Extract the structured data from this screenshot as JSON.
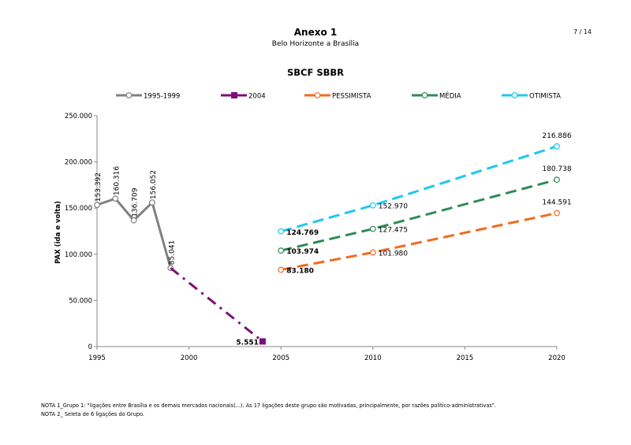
{
  "header": {
    "title": "Anexo 1",
    "subtitle": "Belo Horizonte a Brasília",
    "page": "7 / 14"
  },
  "chart_data": {
    "type": "line",
    "title": "SBCF SBBR",
    "ylabel": "PAX (ida e volta)",
    "xlabel": "",
    "xlim": [
      1995,
      2020
    ],
    "ylim": [
      0,
      250000
    ],
    "x_ticks": [
      1995,
      2000,
      2005,
      2010,
      2015,
      2020
    ],
    "y_ticks": [
      0,
      50000,
      100000,
      150000,
      200000,
      250000
    ],
    "y_tick_labels": [
      "0",
      "50.000",
      "100.000",
      "150.000",
      "200.000",
      "250.000"
    ],
    "legend_position": "top",
    "series": [
      {
        "name": "1995-1999",
        "color": "#808080",
        "style": "solid",
        "marker": "circle",
        "points": [
          {
            "x": 1995,
            "y": 153392,
            "label": "153.392"
          },
          {
            "x": 1996,
            "y": 160316,
            "label": "160.316"
          },
          {
            "x": 1997,
            "y": 136709,
            "label": "136.709"
          },
          {
            "x": 1998,
            "y": 156052,
            "label": "156.052"
          },
          {
            "x": 1999,
            "y": 85041,
            "label": "85.041"
          }
        ]
      },
      {
        "name": "2004",
        "color": "#7B0F7B",
        "style": "dashdot",
        "marker": "square",
        "points": [
          {
            "x": 1999,
            "y": 85041,
            "label": ""
          },
          {
            "x": 2004,
            "y": 5551,
            "label": "5.551"
          }
        ]
      },
      {
        "name": "PESSIMISTA",
        "color": "#F26B1D",
        "style": "dashed",
        "marker": "circle",
        "points": [
          {
            "x": 2005,
            "y": 83180,
            "label": "83.180"
          },
          {
            "x": 2010,
            "y": 101980,
            "label": "101.980"
          },
          {
            "x": 2020,
            "y": 144591,
            "label": "144.591"
          }
        ]
      },
      {
        "name": "MÉDIA",
        "color": "#2E8B57",
        "style": "dashed",
        "marker": "circle",
        "points": [
          {
            "x": 2005,
            "y": 103974,
            "label": "103.974"
          },
          {
            "x": 2010,
            "y": 127475,
            "label": "127.475"
          },
          {
            "x": 2020,
            "y": 180738,
            "label": "180.738"
          }
        ]
      },
      {
        "name": "OTIMISTA",
        "color": "#1EC8F0",
        "style": "dashed",
        "marker": "circle",
        "points": [
          {
            "x": 2005,
            "y": 124769,
            "label": "124.769"
          },
          {
            "x": 2010,
            "y": 152970,
            "label": "152.970"
          },
          {
            "x": 2020,
            "y": 216886,
            "label": "216.886"
          }
        ]
      }
    ]
  },
  "notes": [
    "NOTA 1_Grupo 1: \"ligações entre Brasília e os demais mercados nacionais(...). As 17 ligações deste grupo são motivadas, principalmente, por razões político-administrativas\".",
    "NOTA 2_ Seleta de 6 ligações do Grupo."
  ]
}
